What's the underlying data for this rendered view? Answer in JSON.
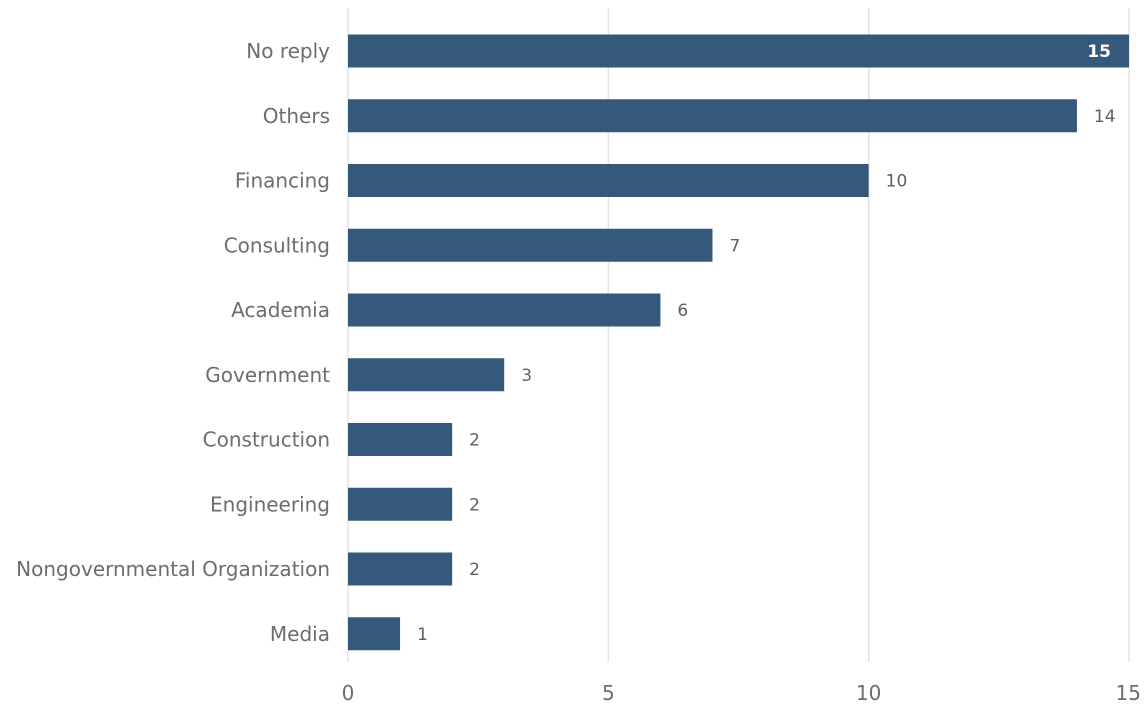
{
  "chart_data": {
    "type": "bar",
    "orientation": "horizontal",
    "categories": [
      "No reply",
      "Others",
      "Financing",
      "Consulting",
      "Academia",
      "Government",
      "Construction",
      "Engineering",
      "Nongovernmental Organization",
      "Media"
    ],
    "values": [
      15,
      14,
      10,
      7,
      6,
      3,
      2,
      2,
      2,
      1
    ],
    "data_labels": [
      "15",
      "14",
      "10",
      "7",
      "6",
      "3",
      "2",
      "2",
      "2",
      "1"
    ],
    "title": "",
    "xlabel": "",
    "ylabel": "",
    "xlim": [
      0,
      15
    ],
    "x_ticks": [
      0,
      5,
      10,
      15
    ],
    "x_tick_labels": [
      "0",
      "5",
      "10",
      "15"
    ],
    "grid": "vertical",
    "legend": "none",
    "bar_color": "#34597a",
    "grid_color": "#e3e3e3",
    "text_color": "#6d6d6d"
  }
}
